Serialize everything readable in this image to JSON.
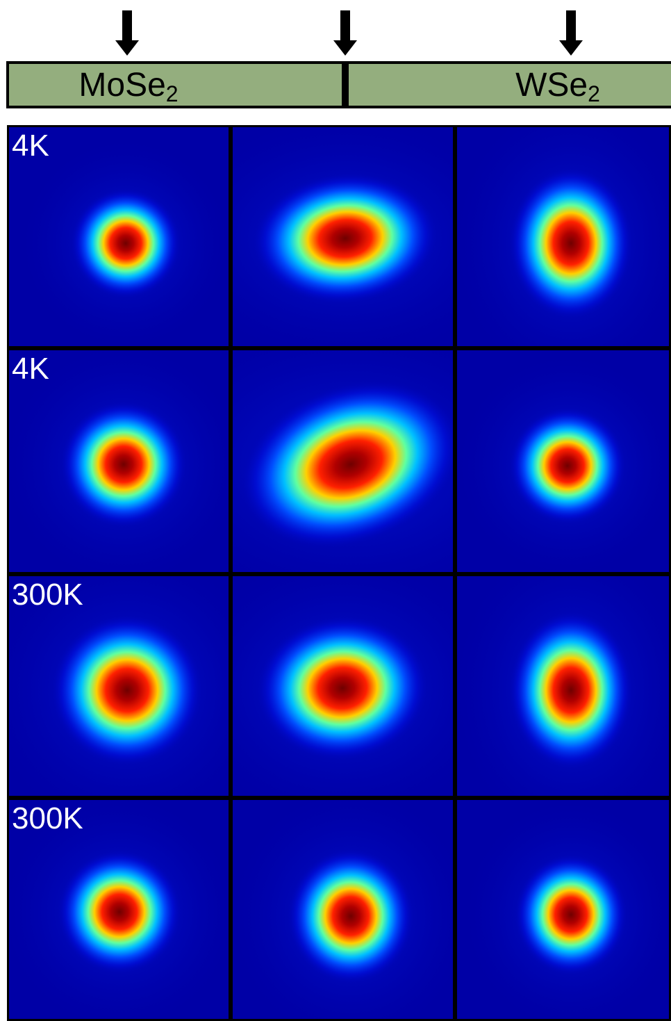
{
  "header": {
    "materials": [
      {
        "main": "MoSe",
        "sub": "2"
      },
      {
        "main": "WSe",
        "sub": "2"
      }
    ]
  },
  "rows": [
    {
      "label": "4K"
    },
    {
      "label": "4K"
    },
    {
      "label": "300K"
    },
    {
      "label": "300K"
    }
  ]
}
